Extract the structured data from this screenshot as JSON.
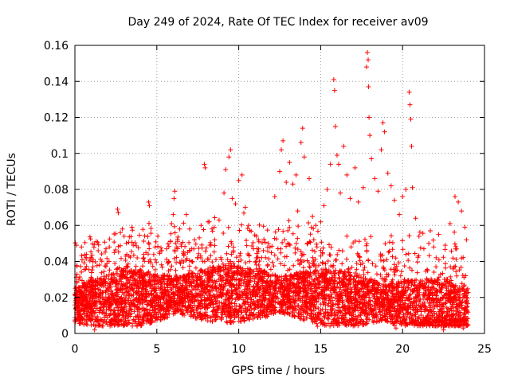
{
  "chart_data": {
    "type": "scatter",
    "title": "Day 249 of 2024, Rate Of TEC Index for receiver av09",
    "xlabel": "GPS time / hours",
    "ylabel": "ROTI / TECUs",
    "xlim": [
      0,
      25
    ],
    "ylim": [
      0,
      0.16
    ],
    "xticks": [
      "0",
      "5",
      "10",
      "15",
      "20",
      "25"
    ],
    "yticks": [
      "0",
      "0.02",
      "0.04",
      "0.06",
      "0.08",
      "0.1",
      "0.12",
      "0.14",
      "0.16"
    ],
    "grid": true,
    "marker": "+",
    "color": "#ff0000",
    "series": [
      {
        "points": [
          [
            0.1,
            0.049
          ],
          [
            0.4,
            0.048
          ],
          [
            0.7,
            0.044
          ],
          [
            1.1,
            0.037
          ],
          [
            1.5,
            0.038
          ],
          [
            1.9,
            0.047
          ],
          [
            2.1,
            0.048
          ],
          [
            2.4,
            0.045
          ],
          [
            2.6,
            0.069
          ],
          [
            2.65,
            0.067
          ],
          [
            2.9,
            0.058
          ],
          [
            3.0,
            0.054
          ],
          [
            3.3,
            0.043
          ],
          [
            3.8,
            0.042
          ],
          [
            4.2,
            0.042
          ],
          [
            4.5,
            0.073
          ],
          [
            4.55,
            0.071
          ],
          [
            4.9,
            0.048
          ],
          [
            5.3,
            0.046
          ],
          [
            5.6,
            0.047
          ],
          [
            5.9,
            0.061
          ],
          [
            6.0,
            0.066
          ],
          [
            6.05,
            0.075
          ],
          [
            6.1,
            0.079
          ],
          [
            6.4,
            0.058
          ],
          [
            6.8,
            0.066
          ],
          [
            7.0,
            0.058
          ],
          [
            7.3,
            0.052
          ],
          [
            7.7,
            0.06
          ],
          [
            7.9,
            0.094
          ],
          [
            7.95,
            0.092
          ],
          [
            8.2,
            0.062
          ],
          [
            8.5,
            0.059
          ],
          [
            8.8,
            0.063
          ],
          [
            9.1,
            0.078
          ],
          [
            9.2,
            0.091
          ],
          [
            9.4,
            0.098
          ],
          [
            9.5,
            0.102
          ],
          [
            9.6,
            0.075
          ],
          [
            9.8,
            0.072
          ],
          [
            10.0,
            0.085
          ],
          [
            10.2,
            0.088
          ],
          [
            10.4,
            0.07
          ],
          [
            10.6,
            0.06
          ],
          [
            10.9,
            0.047
          ],
          [
            11.2,
            0.052
          ],
          [
            11.5,
            0.046
          ],
          [
            11.8,
            0.05
          ],
          [
            12.2,
            0.076
          ],
          [
            12.5,
            0.09
          ],
          [
            12.6,
            0.102
          ],
          [
            12.7,
            0.107
          ],
          [
            12.9,
            0.084
          ],
          [
            13.1,
            0.095
          ],
          [
            13.3,
            0.083
          ],
          [
            13.5,
            0.088
          ],
          [
            13.6,
            0.068
          ],
          [
            13.8,
            0.106
          ],
          [
            13.9,
            0.114
          ],
          [
            14.0,
            0.098
          ],
          [
            14.3,
            0.086
          ],
          [
            14.5,
            0.065
          ],
          [
            14.7,
            0.06
          ],
          [
            15.0,
            0.062
          ],
          [
            15.2,
            0.071
          ],
          [
            15.4,
            0.08
          ],
          [
            15.6,
            0.094
          ],
          [
            15.8,
            0.141
          ],
          [
            15.85,
            0.135
          ],
          [
            15.9,
            0.115
          ],
          [
            16.0,
            0.099
          ],
          [
            16.1,
            0.094
          ],
          [
            16.2,
            0.078
          ],
          [
            16.4,
            0.104
          ],
          [
            16.6,
            0.088
          ],
          [
            16.8,
            0.075
          ],
          [
            17.1,
            0.092
          ],
          [
            17.3,
            0.073
          ],
          [
            17.6,
            0.081
          ],
          [
            17.8,
            0.148
          ],
          [
            17.85,
            0.156
          ],
          [
            17.9,
            0.152
          ],
          [
            17.92,
            0.137
          ],
          [
            17.95,
            0.12
          ],
          [
            18.0,
            0.11
          ],
          [
            18.1,
            0.097
          ],
          [
            18.3,
            0.086
          ],
          [
            18.5,
            0.079
          ],
          [
            18.7,
            0.102
          ],
          [
            18.8,
            0.117
          ],
          [
            18.9,
            0.112
          ],
          [
            19.1,
            0.089
          ],
          [
            19.3,
            0.082
          ],
          [
            19.5,
            0.074
          ],
          [
            19.8,
            0.066
          ],
          [
            20.0,
            0.076
          ],
          [
            20.2,
            0.08
          ],
          [
            20.4,
            0.134
          ],
          [
            20.45,
            0.127
          ],
          [
            20.5,
            0.119
          ],
          [
            20.55,
            0.104
          ],
          [
            20.6,
            0.081
          ],
          [
            20.8,
            0.064
          ],
          [
            21.0,
            0.054
          ],
          [
            21.3,
            0.047
          ],
          [
            21.6,
            0.05
          ],
          [
            21.9,
            0.048
          ],
          [
            22.2,
            0.055
          ],
          [
            22.6,
            0.049
          ],
          [
            22.9,
            0.061
          ],
          [
            23.2,
            0.076
          ],
          [
            23.4,
            0.073
          ],
          [
            23.6,
            0.068
          ],
          [
            23.8,
            0.059
          ],
          [
            23.9,
            0.052
          ],
          [
            0.2,
            0.008
          ],
          [
            1.2,
            0.002
          ],
          [
            5.4,
            0.009
          ],
          [
            9.3,
            0.006
          ],
          [
            14.8,
            0.004
          ],
          [
            19.6,
            0.003
          ],
          [
            22.5,
            0.002
          ],
          [
            23.7,
            0.003
          ]
        ]
      }
    ]
  }
}
